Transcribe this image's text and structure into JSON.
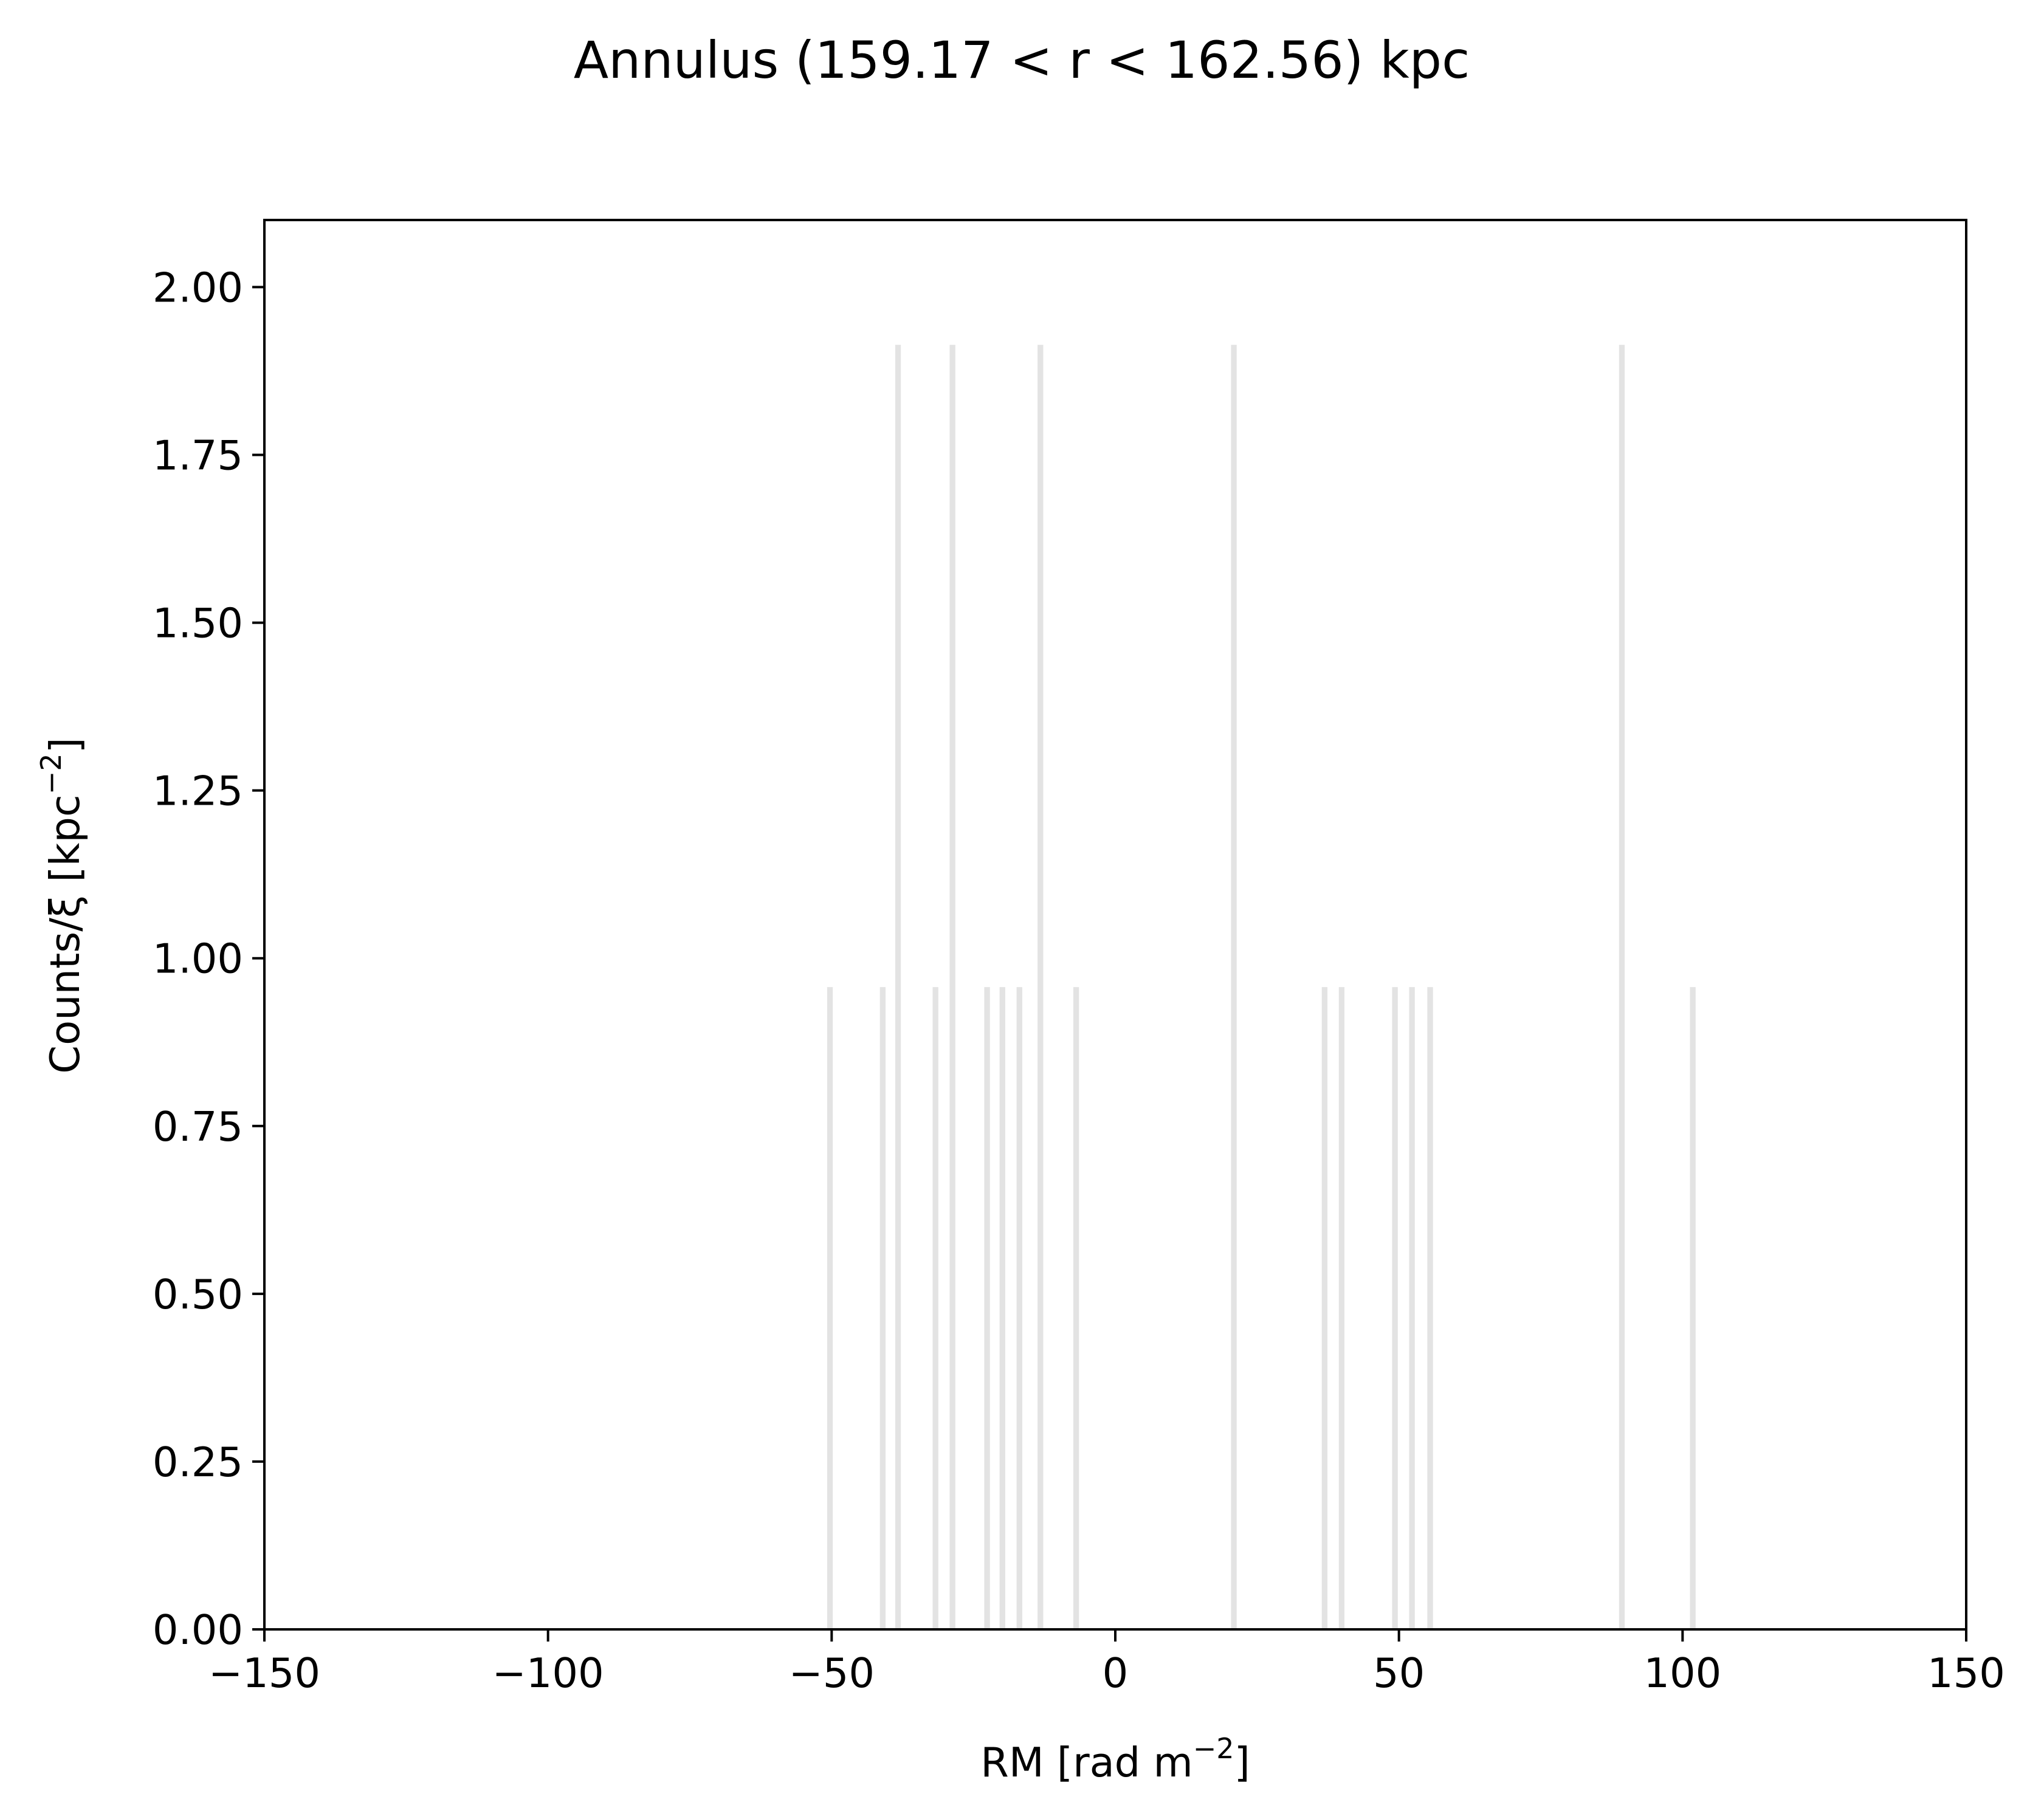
{
  "chart_data": {
    "type": "bar",
    "title": "Annulus (159.17 < r < 162.56) kpc",
    "xlabel": {
      "base": "RM [rad m",
      "sup": "−2",
      "tail": "]"
    },
    "ylabel": {
      "base": "Counts/ξ [kpc",
      "sup": "−2",
      "tail": "]"
    },
    "xlim": [
      -150,
      150
    ],
    "ylim": [
      0,
      2.1
    ],
    "xticks": [
      -150,
      -100,
      -50,
      0,
      50,
      100,
      150
    ],
    "xtick_labels": [
      "−150",
      "−100",
      "−50",
      "0",
      "50",
      "100",
      "150"
    ],
    "yticks": [
      0,
      0.25,
      0.5,
      0.75,
      1.0,
      1.25,
      1.5,
      1.75,
      2.0
    ],
    "ytick_labels": [
      "0.00",
      "0.25",
      "0.50",
      "0.75",
      "1.00",
      "1.25",
      "1.50",
      "1.75",
      "2.00"
    ],
    "grid": false,
    "bar_color": "#e3e3e3",
    "bar_width": 1.0,
    "bars": [
      {
        "x": -50.3,
        "y": 0.957
      },
      {
        "x": -41.0,
        "y": 0.957
      },
      {
        "x": -38.3,
        "y": 1.914
      },
      {
        "x": -31.7,
        "y": 0.957
      },
      {
        "x": -28.7,
        "y": 1.914
      },
      {
        "x": -22.6,
        "y": 0.957
      },
      {
        "x": -19.9,
        "y": 0.957
      },
      {
        "x": -16.9,
        "y": 0.957
      },
      {
        "x": -13.2,
        "y": 1.914
      },
      {
        "x": -6.9,
        "y": 0.957
      },
      {
        "x": 20.9,
        "y": 1.914
      },
      {
        "x": 36.9,
        "y": 0.957
      },
      {
        "x": 39.9,
        "y": 0.957
      },
      {
        "x": 49.3,
        "y": 0.957
      },
      {
        "x": 52.3,
        "y": 0.957
      },
      {
        "x": 55.5,
        "y": 0.957
      },
      {
        "x": 89.3,
        "y": 1.914
      },
      {
        "x": 101.8,
        "y": 0.957
      }
    ]
  }
}
